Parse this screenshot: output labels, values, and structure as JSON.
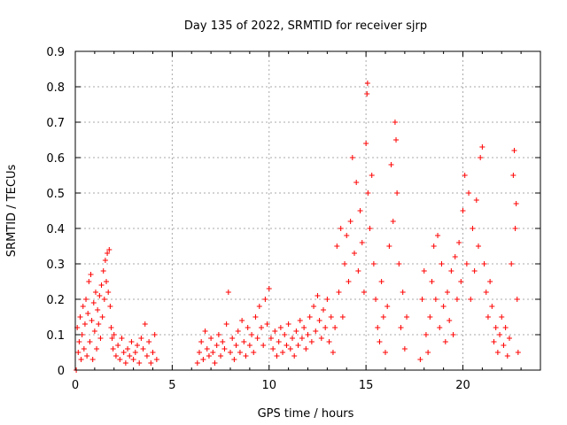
{
  "chart_data": {
    "type": "scatter",
    "title": "Day 135 of 2022, SRMTID for receiver sjrp",
    "xlabel": "GPS time / hours",
    "ylabel": "SRMTID / TECUs",
    "xlim": [
      0,
      24
    ],
    "ylim": [
      0,
      0.9
    ],
    "xticks": [
      0,
      5,
      10,
      15,
      20
    ],
    "yticks": [
      0,
      0.1,
      0.2,
      0.3,
      0.4,
      0.5,
      0.6,
      0.7,
      0.8,
      0.9
    ],
    "grid": true,
    "marker": "plus",
    "color": "#ff0000",
    "series": [
      {
        "name": "SRMTID",
        "points": [
          [
            0.05,
            0.0
          ],
          [
            0.1,
            0.12
          ],
          [
            0.15,
            0.05
          ],
          [
            0.2,
            0.08
          ],
          [
            0.25,
            0.15
          ],
          [
            0.3,
            0.03
          ],
          [
            0.35,
            0.1
          ],
          [
            0.4,
            0.18
          ],
          [
            0.45,
            0.06
          ],
          [
            0.5,
            0.13
          ],
          [
            0.55,
            0.2
          ],
          [
            0.6,
            0.04
          ],
          [
            0.65,
            0.16
          ],
          [
            0.7,
            0.25
          ],
          [
            0.75,
            0.08
          ],
          [
            0.8,
            0.27
          ],
          [
            0.85,
            0.14
          ],
          [
            0.9,
            0.03
          ],
          [
            0.95,
            0.19
          ],
          [
            1.0,
            0.11
          ],
          [
            1.05,
            0.22
          ],
          [
            1.1,
            0.06
          ],
          [
            1.15,
            0.17
          ],
          [
            1.2,
            0.13
          ],
          [
            1.25,
            0.21
          ],
          [
            1.3,
            0.09
          ],
          [
            1.35,
            0.24
          ],
          [
            1.4,
            0.15
          ],
          [
            1.45,
            0.28
          ],
          [
            1.5,
            0.2
          ],
          [
            1.55,
            0.31
          ],
          [
            1.6,
            0.25
          ],
          [
            1.65,
            0.33
          ],
          [
            1.7,
            0.22
          ],
          [
            1.75,
            0.34
          ],
          [
            1.8,
            0.18
          ],
          [
            1.85,
            0.12
          ],
          [
            1.9,
            0.09
          ],
          [
            1.95,
            0.06
          ],
          [
            2.0,
            0.1
          ],
          [
            2.1,
            0.04
          ],
          [
            2.2,
            0.07
          ],
          [
            2.3,
            0.03
          ],
          [
            2.4,
            0.09
          ],
          [
            2.5,
            0.05
          ],
          [
            2.6,
            0.02
          ],
          [
            2.7,
            0.06
          ],
          [
            2.8,
            0.04
          ],
          [
            2.9,
            0.08
          ],
          [
            3.0,
            0.03
          ],
          [
            3.1,
            0.05
          ],
          [
            3.2,
            0.07
          ],
          [
            3.3,
            0.02
          ],
          [
            3.4,
            0.09
          ],
          [
            3.5,
            0.06
          ],
          [
            3.6,
            0.13
          ],
          [
            3.7,
            0.04
          ],
          [
            3.8,
            0.08
          ],
          [
            3.9,
            0.02
          ],
          [
            4.0,
            0.05
          ],
          [
            4.1,
            0.1
          ],
          [
            4.2,
            0.03
          ],
          [
            6.3,
            0.02
          ],
          [
            6.4,
            0.05
          ],
          [
            6.5,
            0.08
          ],
          [
            6.6,
            0.03
          ],
          [
            6.7,
            0.11
          ],
          [
            6.8,
            0.06
          ],
          [
            6.9,
            0.04
          ],
          [
            7.0,
            0.09
          ],
          [
            7.1,
            0.05
          ],
          [
            7.2,
            0.02
          ],
          [
            7.3,
            0.07
          ],
          [
            7.4,
            0.1
          ],
          [
            7.5,
            0.04
          ],
          [
            7.6,
            0.08
          ],
          [
            7.7,
            0.06
          ],
          [
            7.8,
            0.13
          ],
          [
            7.9,
            0.22
          ],
          [
            8.0,
            0.05
          ],
          [
            8.1,
            0.09
          ],
          [
            8.2,
            0.03
          ],
          [
            8.3,
            0.07
          ],
          [
            8.4,
            0.11
          ],
          [
            8.5,
            0.05
          ],
          [
            8.6,
            0.14
          ],
          [
            8.7,
            0.08
          ],
          [
            8.8,
            0.04
          ],
          [
            8.9,
            0.12
          ],
          [
            9.0,
            0.07
          ],
          [
            9.1,
            0.1
          ],
          [
            9.2,
            0.05
          ],
          [
            9.3,
            0.15
          ],
          [
            9.4,
            0.09
          ],
          [
            9.5,
            0.18
          ],
          [
            9.6,
            0.12
          ],
          [
            9.7,
            0.07
          ],
          [
            9.8,
            0.2
          ],
          [
            9.9,
            0.13
          ],
          [
            10.0,
            0.23
          ],
          [
            10.1,
            0.09
          ],
          [
            10.2,
            0.06
          ],
          [
            10.3,
            0.11
          ],
          [
            10.4,
            0.04
          ],
          [
            10.5,
            0.08
          ],
          [
            10.6,
            0.12
          ],
          [
            10.7,
            0.05
          ],
          [
            10.8,
            0.1
          ],
          [
            10.9,
            0.07
          ],
          [
            11.0,
            0.13
          ],
          [
            11.1,
            0.06
          ],
          [
            11.2,
            0.09
          ],
          [
            11.3,
            0.04
          ],
          [
            11.4,
            0.11
          ],
          [
            11.5,
            0.07
          ],
          [
            11.6,
            0.14
          ],
          [
            11.7,
            0.09
          ],
          [
            11.8,
            0.12
          ],
          [
            11.9,
            0.06
          ],
          [
            12.0,
            0.1
          ],
          [
            12.1,
            0.15
          ],
          [
            12.2,
            0.08
          ],
          [
            12.3,
            0.18
          ],
          [
            12.4,
            0.11
          ],
          [
            12.5,
            0.21
          ],
          [
            12.6,
            0.14
          ],
          [
            12.7,
            0.09
          ],
          [
            12.8,
            0.17
          ],
          [
            12.9,
            0.12
          ],
          [
            13.0,
            0.2
          ],
          [
            13.1,
            0.08
          ],
          [
            13.2,
            0.15
          ],
          [
            13.3,
            0.05
          ],
          [
            13.4,
            0.12
          ],
          [
            13.5,
            0.35
          ],
          [
            13.6,
            0.22
          ],
          [
            13.7,
            0.4
          ],
          [
            13.8,
            0.15
          ],
          [
            13.9,
            0.3
          ],
          [
            14.0,
            0.38
          ],
          [
            14.1,
            0.25
          ],
          [
            14.2,
            0.42
          ],
          [
            14.3,
            0.6
          ],
          [
            14.4,
            0.33
          ],
          [
            14.5,
            0.53
          ],
          [
            14.6,
            0.28
          ],
          [
            14.7,
            0.45
          ],
          [
            14.8,
            0.36
          ],
          [
            14.9,
            0.22
          ],
          [
            15.0,
            0.64
          ],
          [
            15.05,
            0.78
          ],
          [
            15.08,
            0.81
          ],
          [
            15.1,
            0.5
          ],
          [
            15.2,
            0.4
          ],
          [
            15.3,
            0.55
          ],
          [
            15.4,
            0.3
          ],
          [
            15.5,
            0.2
          ],
          [
            15.6,
            0.12
          ],
          [
            15.7,
            0.08
          ],
          [
            15.8,
            0.25
          ],
          [
            15.9,
            0.15
          ],
          [
            16.0,
            0.05
          ],
          [
            16.1,
            0.18
          ],
          [
            16.2,
            0.35
          ],
          [
            16.3,
            0.58
          ],
          [
            16.4,
            0.42
          ],
          [
            16.5,
            0.7
          ],
          [
            16.55,
            0.65
          ],
          [
            16.6,
            0.5
          ],
          [
            16.7,
            0.3
          ],
          [
            16.8,
            0.12
          ],
          [
            16.9,
            0.22
          ],
          [
            17.0,
            0.06
          ],
          [
            17.1,
            0.15
          ],
          [
            17.8,
            0.03
          ],
          [
            17.9,
            0.2
          ],
          [
            18.0,
            0.28
          ],
          [
            18.1,
            0.1
          ],
          [
            18.2,
            0.05
          ],
          [
            18.3,
            0.15
          ],
          [
            18.4,
            0.25
          ],
          [
            18.5,
            0.35
          ],
          [
            18.6,
            0.2
          ],
          [
            18.7,
            0.38
          ],
          [
            18.8,
            0.12
          ],
          [
            18.9,
            0.3
          ],
          [
            19.0,
            0.18
          ],
          [
            19.1,
            0.08
          ],
          [
            19.2,
            0.22
          ],
          [
            19.3,
            0.14
          ],
          [
            19.4,
            0.28
          ],
          [
            19.5,
            0.1
          ],
          [
            19.6,
            0.32
          ],
          [
            19.7,
            0.2
          ],
          [
            19.8,
            0.36
          ],
          [
            19.9,
            0.25
          ],
          [
            20.0,
            0.45
          ],
          [
            20.1,
            0.55
          ],
          [
            20.2,
            0.3
          ],
          [
            20.3,
            0.5
          ],
          [
            20.4,
            0.2
          ],
          [
            20.5,
            0.4
          ],
          [
            20.6,
            0.28
          ],
          [
            20.7,
            0.48
          ],
          [
            20.8,
            0.35
          ],
          [
            20.9,
            0.6
          ],
          [
            21.0,
            0.63
          ],
          [
            21.1,
            0.3
          ],
          [
            21.2,
            0.22
          ],
          [
            21.3,
            0.15
          ],
          [
            21.4,
            0.25
          ],
          [
            21.5,
            0.18
          ],
          [
            21.6,
            0.08
          ],
          [
            21.7,
            0.12
          ],
          [
            21.8,
            0.05
          ],
          [
            21.9,
            0.1
          ],
          [
            22.0,
            0.15
          ],
          [
            22.1,
            0.07
          ],
          [
            22.2,
            0.12
          ],
          [
            22.3,
            0.04
          ],
          [
            22.4,
            0.09
          ],
          [
            22.5,
            0.3
          ],
          [
            22.6,
            0.55
          ],
          [
            22.65,
            0.62
          ],
          [
            22.7,
            0.4
          ],
          [
            22.75,
            0.47
          ],
          [
            22.8,
            0.2
          ],
          [
            22.85,
            0.05
          ]
        ]
      }
    ]
  }
}
